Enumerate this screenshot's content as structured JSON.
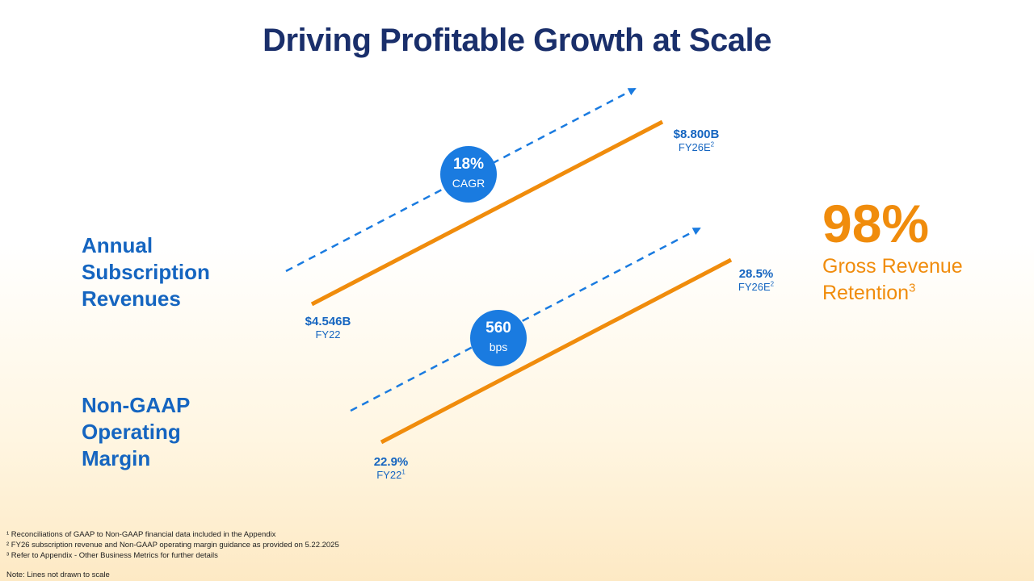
{
  "title": "Driving Profitable Growth at Scale",
  "labels": {
    "revenue": [
      "Annual",
      "Subscription",
      "Revenues"
    ],
    "margin": [
      "Non-GAAP",
      "Operating",
      "Margin"
    ]
  },
  "revenue": {
    "start_value": "$4.546B",
    "start_period": "FY22",
    "end_value": "$8.800B",
    "end_period": "FY26E",
    "end_sup": "2",
    "badge_value": "18%",
    "badge_label": "CAGR"
  },
  "margin": {
    "start_value": "22.9%",
    "start_period": "FY22",
    "start_sup": "1",
    "end_value": "28.5%",
    "end_period": "FY26E",
    "end_sup": "2",
    "badge_value": "560",
    "badge_label": "bps"
  },
  "retention": {
    "value": "98%",
    "line1": "Gross Revenue",
    "line2": "Retention",
    "sup": "3"
  },
  "footnotes": [
    "¹ Reconciliations of GAAP to Non-GAAP financial data included in the Appendix",
    "² FY26 subscription revenue and Non-GAAP operating margin guidance as provided on 5.22.2025",
    "³ Refer to Appendix - Other Business Metrics for further details"
  ],
  "note": "Note: Lines not drawn to scale",
  "colors": {
    "navy": "#1a2f6b",
    "blue": "#1565c0",
    "badge": "#1a7be0",
    "orange": "#f08c0c"
  }
}
